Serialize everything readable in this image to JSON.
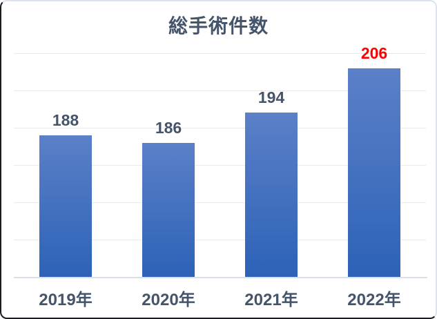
{
  "chart_data": {
    "type": "bar",
    "title": "総手術件数",
    "categories": [
      "2019年",
      "2020年",
      "2021年",
      "2022年"
    ],
    "values": [
      188,
      186,
      194,
      206
    ],
    "value_labels": [
      "188",
      "186",
      "194",
      "206"
    ],
    "value_label_colors": [
      "#44546A",
      "#44546A",
      "#44546A",
      "#FF0000"
    ],
    "xlabel": "",
    "ylabel": "",
    "ylim": [
      150,
      210
    ],
    "gridline_step": 10,
    "grid_on": true,
    "legend": "none"
  },
  "colors": {
    "title_text": "#44546A",
    "category_text": "#44546A",
    "bar_gradient_top": "#5B80C8",
    "bar_gradient_bottom": "#2D62B7",
    "gridline": "#E6EAF1",
    "axis_line": "#D9E0EA"
  }
}
